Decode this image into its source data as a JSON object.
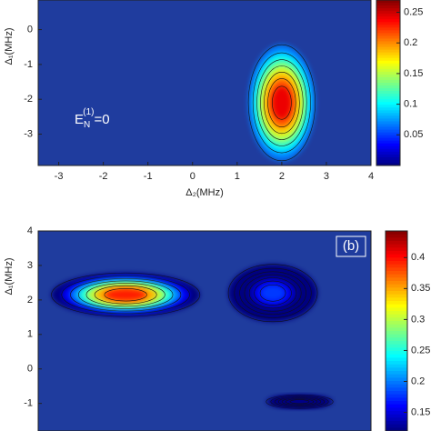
{
  "chart_data": [
    {
      "type": "heatmap",
      "xlabel": "Δ₂(MHz)",
      "ylabel": "Δ₁(MHz)",
      "annotation": {
        "base": "E",
        "sub": "N",
        "sup": "(1)",
        "rest": "=0"
      },
      "xlim": [
        -3.46,
        4
      ],
      "ylim": [
        -3.9,
        0.85
      ],
      "xticks": [
        -3,
        -2,
        -1,
        0,
        1,
        2,
        3,
        4
      ],
      "yticks": [
        -3,
        -2,
        -1,
        0
      ],
      "clim": [
        0,
        0.27
      ],
      "cticks": [
        0.05,
        0.1,
        0.15,
        0.2,
        0.25
      ],
      "peaks": [
        {
          "x": 2,
          "y": -2.1,
          "value": 0.27
        }
      ]
    },
    {
      "type": "heatmap",
      "ylabel": "Δ₁(MHz)",
      "panel_label": "(b)",
      "xlim": [
        -3.46,
        4
      ],
      "ylim": [
        -1.8,
        4
      ],
      "yticks": [
        -1,
        0,
        1,
        2,
        3,
        4
      ],
      "clim": [
        0.12,
        0.443
      ],
      "cticks": [
        0.15,
        0.2,
        0.25,
        0.3,
        0.35,
        0.4
      ],
      "peaks": [
        {
          "x": -1.5,
          "y": 2.15,
          "value": 0.44
        },
        {
          "x": 1.8,
          "y": 2.2,
          "value": 0.2
        },
        {
          "x": 2.4,
          "y": -0.95,
          "value": 0.14
        }
      ]
    }
  ]
}
